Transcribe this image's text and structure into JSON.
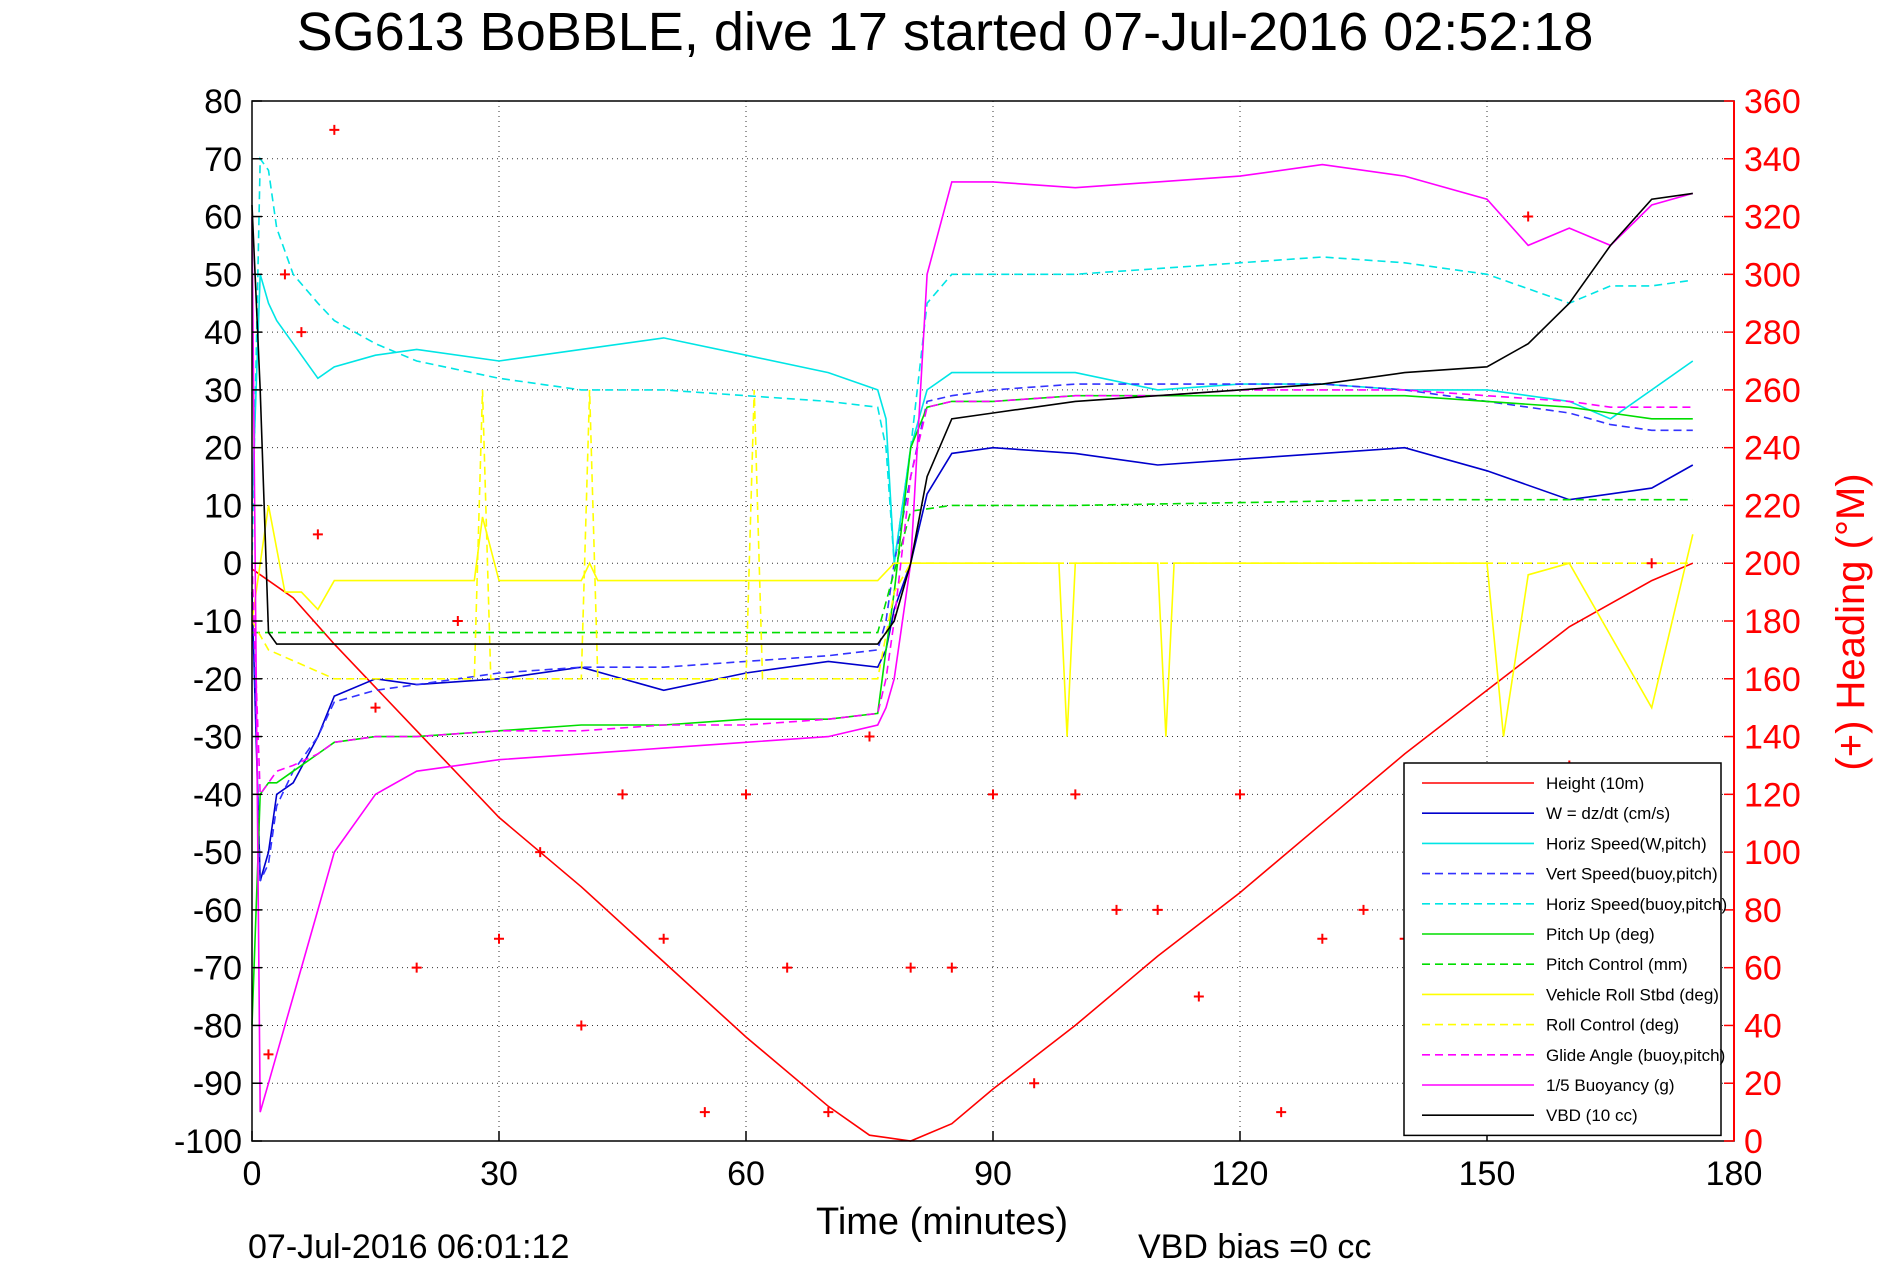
{
  "chart_data": {
    "type": "line",
    "title": "SG613 BoBBLE, dive 17 started 07-Jul-2016 02:52:18",
    "xlabel": "Time (minutes)",
    "ylabel": "",
    "y2label": "(+) Heading (°M)",
    "xlim": [
      0,
      180
    ],
    "ylim": [
      -100,
      80
    ],
    "y2lim": [
      0,
      360
    ],
    "x_ticks": [
      0,
      30,
      60,
      90,
      120,
      150,
      180
    ],
    "y_ticks": [
      -100,
      -90,
      -80,
      -70,
      -60,
      -50,
      -40,
      -30,
      -20,
      -10,
      0,
      10,
      20,
      30,
      40,
      50,
      60,
      70,
      80
    ],
    "y2_ticks": [
      0,
      20,
      40,
      60,
      80,
      100,
      120,
      140,
      160,
      180,
      200,
      220,
      240,
      260,
      280,
      300,
      320,
      340,
      360
    ],
    "grid": true,
    "legend_position": "lower-right",
    "footer_left": "07-Jul-2016 06:01:12",
    "footer_right": "VBD bias =0 cc",
    "series": [
      {
        "name": "Height (10m)",
        "color": "#ff0000",
        "style": "solid",
        "x": [
          0,
          5,
          10,
          20,
          30,
          40,
          50,
          60,
          70,
          75,
          80,
          85,
          90,
          100,
          110,
          120,
          130,
          140,
          150,
          160,
          170,
          175
        ],
        "values": [
          -1,
          -6,
          -14,
          -29,
          -44,
          -56,
          -69,
          -82,
          -94,
          -99,
          -100,
          -97,
          -91,
          -80,
          -68,
          -57,
          -45,
          -33,
          -22,
          -11,
          -3,
          0
        ]
      },
      {
        "name": "W = dz/dt (cm/s)",
        "color": "#0000cc",
        "style": "solid",
        "x": [
          0,
          1,
          2,
          3,
          5,
          8,
          10,
          15,
          20,
          30,
          40,
          50,
          60,
          70,
          76,
          77,
          78,
          80,
          82,
          85,
          90,
          100,
          110,
          120,
          130,
          140,
          150,
          160,
          165,
          170,
          175
        ],
        "values": [
          -5,
          -55,
          -50,
          -40,
          -38,
          -30,
          -23,
          -20,
          -21,
          -20,
          -18,
          -22,
          -19,
          -17,
          -18,
          -15,
          -8,
          0,
          12,
          19,
          20,
          19,
          17,
          18,
          19,
          20,
          16,
          11,
          12,
          13,
          17
        ]
      },
      {
        "name": "Horiz Speed(W,pitch)",
        "color": "#00e5e5",
        "style": "solid",
        "x": [
          0,
          1,
          2,
          3,
          5,
          8,
          10,
          15,
          20,
          30,
          40,
          50,
          60,
          70,
          76,
          77,
          78,
          80,
          82,
          85,
          90,
          100,
          110,
          120,
          130,
          140,
          150,
          160,
          165,
          170,
          175
        ],
        "values": [
          10,
          50,
          45,
          42,
          38,
          32,
          34,
          36,
          37,
          35,
          37,
          39,
          36,
          33,
          30,
          25,
          0,
          20,
          30,
          33,
          33,
          33,
          30,
          31,
          31,
          30,
          30,
          28,
          25,
          30,
          35
        ]
      },
      {
        "name": "Vert Speed(buoy,pitch)",
        "color": "#3333ff",
        "style": "dashed",
        "x": [
          0,
          1,
          2,
          3,
          5,
          8,
          10,
          15,
          20,
          30,
          40,
          50,
          60,
          70,
          76,
          77,
          78,
          80,
          82,
          85,
          90,
          100,
          110,
          120,
          130,
          140,
          150,
          160,
          165,
          170,
          175
        ],
        "values": [
          0,
          -55,
          -52,
          -42,
          -36,
          -30,
          -24,
          -22,
          -21,
          -19,
          -18,
          -18,
          -17,
          -16,
          -15,
          -10,
          0,
          15,
          28,
          29,
          30,
          31,
          31,
          31,
          31,
          30,
          28,
          26,
          24,
          23,
          23
        ]
      },
      {
        "name": "Horiz Speed(buoy,pitch)",
        "color": "#00e5e5",
        "style": "dashed",
        "x": [
          0,
          1,
          2,
          3,
          5,
          8,
          10,
          15,
          20,
          30,
          40,
          50,
          60,
          70,
          76,
          77,
          78,
          80,
          82,
          85,
          90,
          100,
          110,
          120,
          130,
          140,
          150,
          160,
          165,
          170,
          175
        ],
        "values": [
          0,
          70,
          68,
          58,
          50,
          45,
          42,
          38,
          35,
          32,
          30,
          30,
          29,
          28,
          27,
          20,
          0,
          20,
          45,
          50,
          50,
          50,
          51,
          52,
          53,
          52,
          50,
          45,
          48,
          48,
          49
        ]
      },
      {
        "name": "Pitch Up (deg)",
        "color": "#00dd00",
        "style": "solid",
        "x": [
          0,
          1,
          2,
          3,
          5,
          8,
          10,
          15,
          20,
          30,
          40,
          50,
          60,
          70,
          76,
          77,
          78,
          80,
          82,
          85,
          90,
          100,
          110,
          120,
          130,
          140,
          150,
          160,
          165,
          170,
          175
        ],
        "values": [
          -80,
          -40,
          -38,
          -38,
          -36,
          -33,
          -31,
          -30,
          -30,
          -29,
          -28,
          -28,
          -27,
          -27,
          -26,
          -15,
          -5,
          20,
          27,
          28,
          28,
          29,
          29,
          29,
          29,
          29,
          28,
          27,
          26,
          25,
          25
        ]
      },
      {
        "name": "Pitch Control (mm)",
        "color": "#00dd00",
        "style": "dashed",
        "x": [
          0,
          2,
          76,
          80,
          85,
          100,
          120,
          140,
          160,
          175
        ],
        "values": [
          -12,
          -12,
          -12,
          9,
          10,
          10,
          10.5,
          11,
          11,
          11
        ]
      },
      {
        "name": "Vehicle Roll Stbd (deg)",
        "color": "#ffff00",
        "style": "solid",
        "x": [
          0,
          2,
          4,
          6,
          8,
          10,
          20,
          27,
          28,
          30,
          40,
          41,
          42,
          50,
          60,
          70,
          76,
          78,
          80,
          90,
          98,
          99,
          100,
          110,
          111,
          112,
          120,
          130,
          140,
          150,
          152,
          155,
          160,
          170,
          175
        ],
        "values": [
          -10,
          10,
          -5,
          -5,
          -8,
          -3,
          -3,
          -3,
          8,
          -3,
          -3,
          0,
          -3,
          -3,
          -3,
          -3,
          -3,
          0,
          0,
          0,
          0,
          -30,
          0,
          0,
          -30,
          0,
          0,
          0,
          0,
          0,
          -30,
          -2,
          0,
          -25,
          5
        ]
      },
      {
        "name": "Roll Control (deg)",
        "color": "#ffff00",
        "style": "dashed",
        "x": [
          0,
          2,
          10,
          20,
          27,
          28,
          29,
          40,
          41,
          42,
          60,
          61,
          62,
          76,
          78,
          80,
          90,
          120,
          130,
          140,
          150,
          160,
          170,
          175
        ],
        "values": [
          -10,
          -15,
          -20,
          -20,
          -20,
          30,
          -20,
          -20,
          30,
          -20,
          -20,
          30,
          -20,
          -20,
          -5,
          0,
          0,
          0,
          0,
          0,
          0,
          0,
          0,
          0
        ]
      },
      {
        "name": "Glide Angle (buoy,pitch)",
        "color": "#ff00ff",
        "style": "dashed",
        "x": [
          0,
          1,
          2,
          3,
          5,
          8,
          10,
          15,
          20,
          30,
          40,
          50,
          60,
          70,
          76,
          77,
          78,
          80,
          82,
          85,
          90,
          100,
          110,
          120,
          130,
          140,
          150,
          160,
          165,
          170,
          175
        ],
        "values": [
          0,
          -40,
          -38,
          -36,
          -35,
          -33,
          -31,
          -30,
          -30,
          -29,
          -29,
          -28,
          -28,
          -27,
          -26,
          -20,
          -10,
          15,
          27,
          28,
          28,
          29,
          29,
          30,
          30,
          30,
          29,
          28,
          27,
          27,
          27
        ]
      },
      {
        "name": "1/5 Buoyancy (g)",
        "color": "#ff00ff",
        "style": "solid",
        "x": [
          0,
          1,
          2,
          3,
          5,
          8,
          10,
          15,
          20,
          30,
          40,
          50,
          60,
          70,
          76,
          77,
          78,
          80,
          82,
          85,
          90,
          100,
          110,
          120,
          130,
          140,
          150,
          155,
          160,
          165,
          170,
          175
        ],
        "values": [
          60,
          -95,
          -90,
          -85,
          -75,
          -60,
          -50,
          -40,
          -36,
          -34,
          -33,
          -32,
          -31,
          -30,
          -28,
          -25,
          -20,
          0,
          50,
          66,
          66,
          65,
          66,
          67,
          69,
          67,
          63,
          55,
          58,
          55,
          62,
          64
        ]
      },
      {
        "name": "VBD (10 cc)",
        "color": "#000000",
        "style": "solid",
        "x": [
          0,
          1,
          2,
          3,
          5,
          8,
          10,
          20,
          30,
          40,
          50,
          60,
          70,
          76,
          77,
          78,
          80,
          82,
          85,
          90,
          100,
          110,
          120,
          130,
          140,
          150,
          155,
          160,
          165,
          170,
          175
        ],
        "values": [
          62,
          30,
          -12,
          -14,
          -14,
          -14,
          -14,
          -14,
          -14,
          -14,
          -14,
          -14,
          -14,
          -14,
          -12,
          -10,
          0,
          15,
          25,
          26,
          28,
          29,
          30,
          31,
          33,
          34,
          38,
          45,
          55,
          63,
          64
        ]
      },
      {
        "name": "(+) Heading (°M)",
        "color": "#ff0000",
        "style": "plus",
        "axis": "right",
        "x": [
          2,
          4,
          6,
          8,
          10,
          15,
          20,
          25,
          30,
          35,
          40,
          45,
          50,
          55,
          60,
          65,
          70,
          75,
          80,
          85,
          90,
          95,
          100,
          105,
          110,
          115,
          120,
          125,
          130,
          135,
          140,
          145,
          150,
          155,
          160,
          165,
          170
        ],
        "values": [
          30,
          300,
          280,
          210,
          350,
          150,
          60,
          180,
          70,
          100,
          40,
          120,
          70,
          10,
          120,
          60,
          10,
          140,
          60,
          60,
          120,
          20,
          120,
          80,
          80,
          50,
          120,
          10,
          70,
          80,
          70,
          120,
          100,
          320,
          130,
          80,
          200
        ]
      }
    ]
  }
}
